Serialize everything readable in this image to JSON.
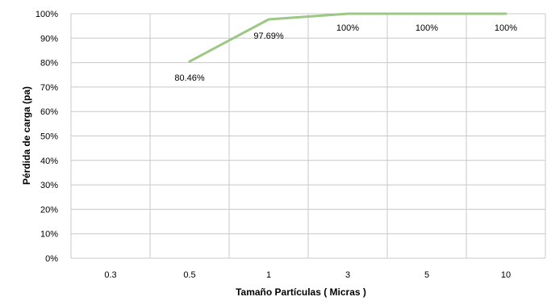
{
  "chart_data": {
    "type": "line",
    "title": "",
    "xlabel": "Tamaño Partículas ( Micras )",
    "ylabel": "Pérdida de carga (pa)",
    "categories": [
      "0.3",
      "0.5",
      "1",
      "3",
      "5",
      "10"
    ],
    "series": [
      {
        "values": [
          null,
          80.46,
          97.69,
          100,
          100,
          100
        ],
        "data_labels": [
          "",
          "80.46%",
          "97.69%",
          "100%",
          "100%",
          "100%"
        ],
        "color": "#9dc784"
      }
    ],
    "ylim": [
      0,
      100
    ],
    "yticks": [
      0,
      10,
      20,
      30,
      40,
      50,
      60,
      70,
      80,
      90,
      100
    ],
    "ytick_labels": [
      "0%",
      "10%",
      "20%",
      "30%",
      "40%",
      "50%",
      "60%",
      "70%",
      "80%",
      "90%",
      "100%"
    ],
    "grid": true,
    "legend": "none"
  }
}
